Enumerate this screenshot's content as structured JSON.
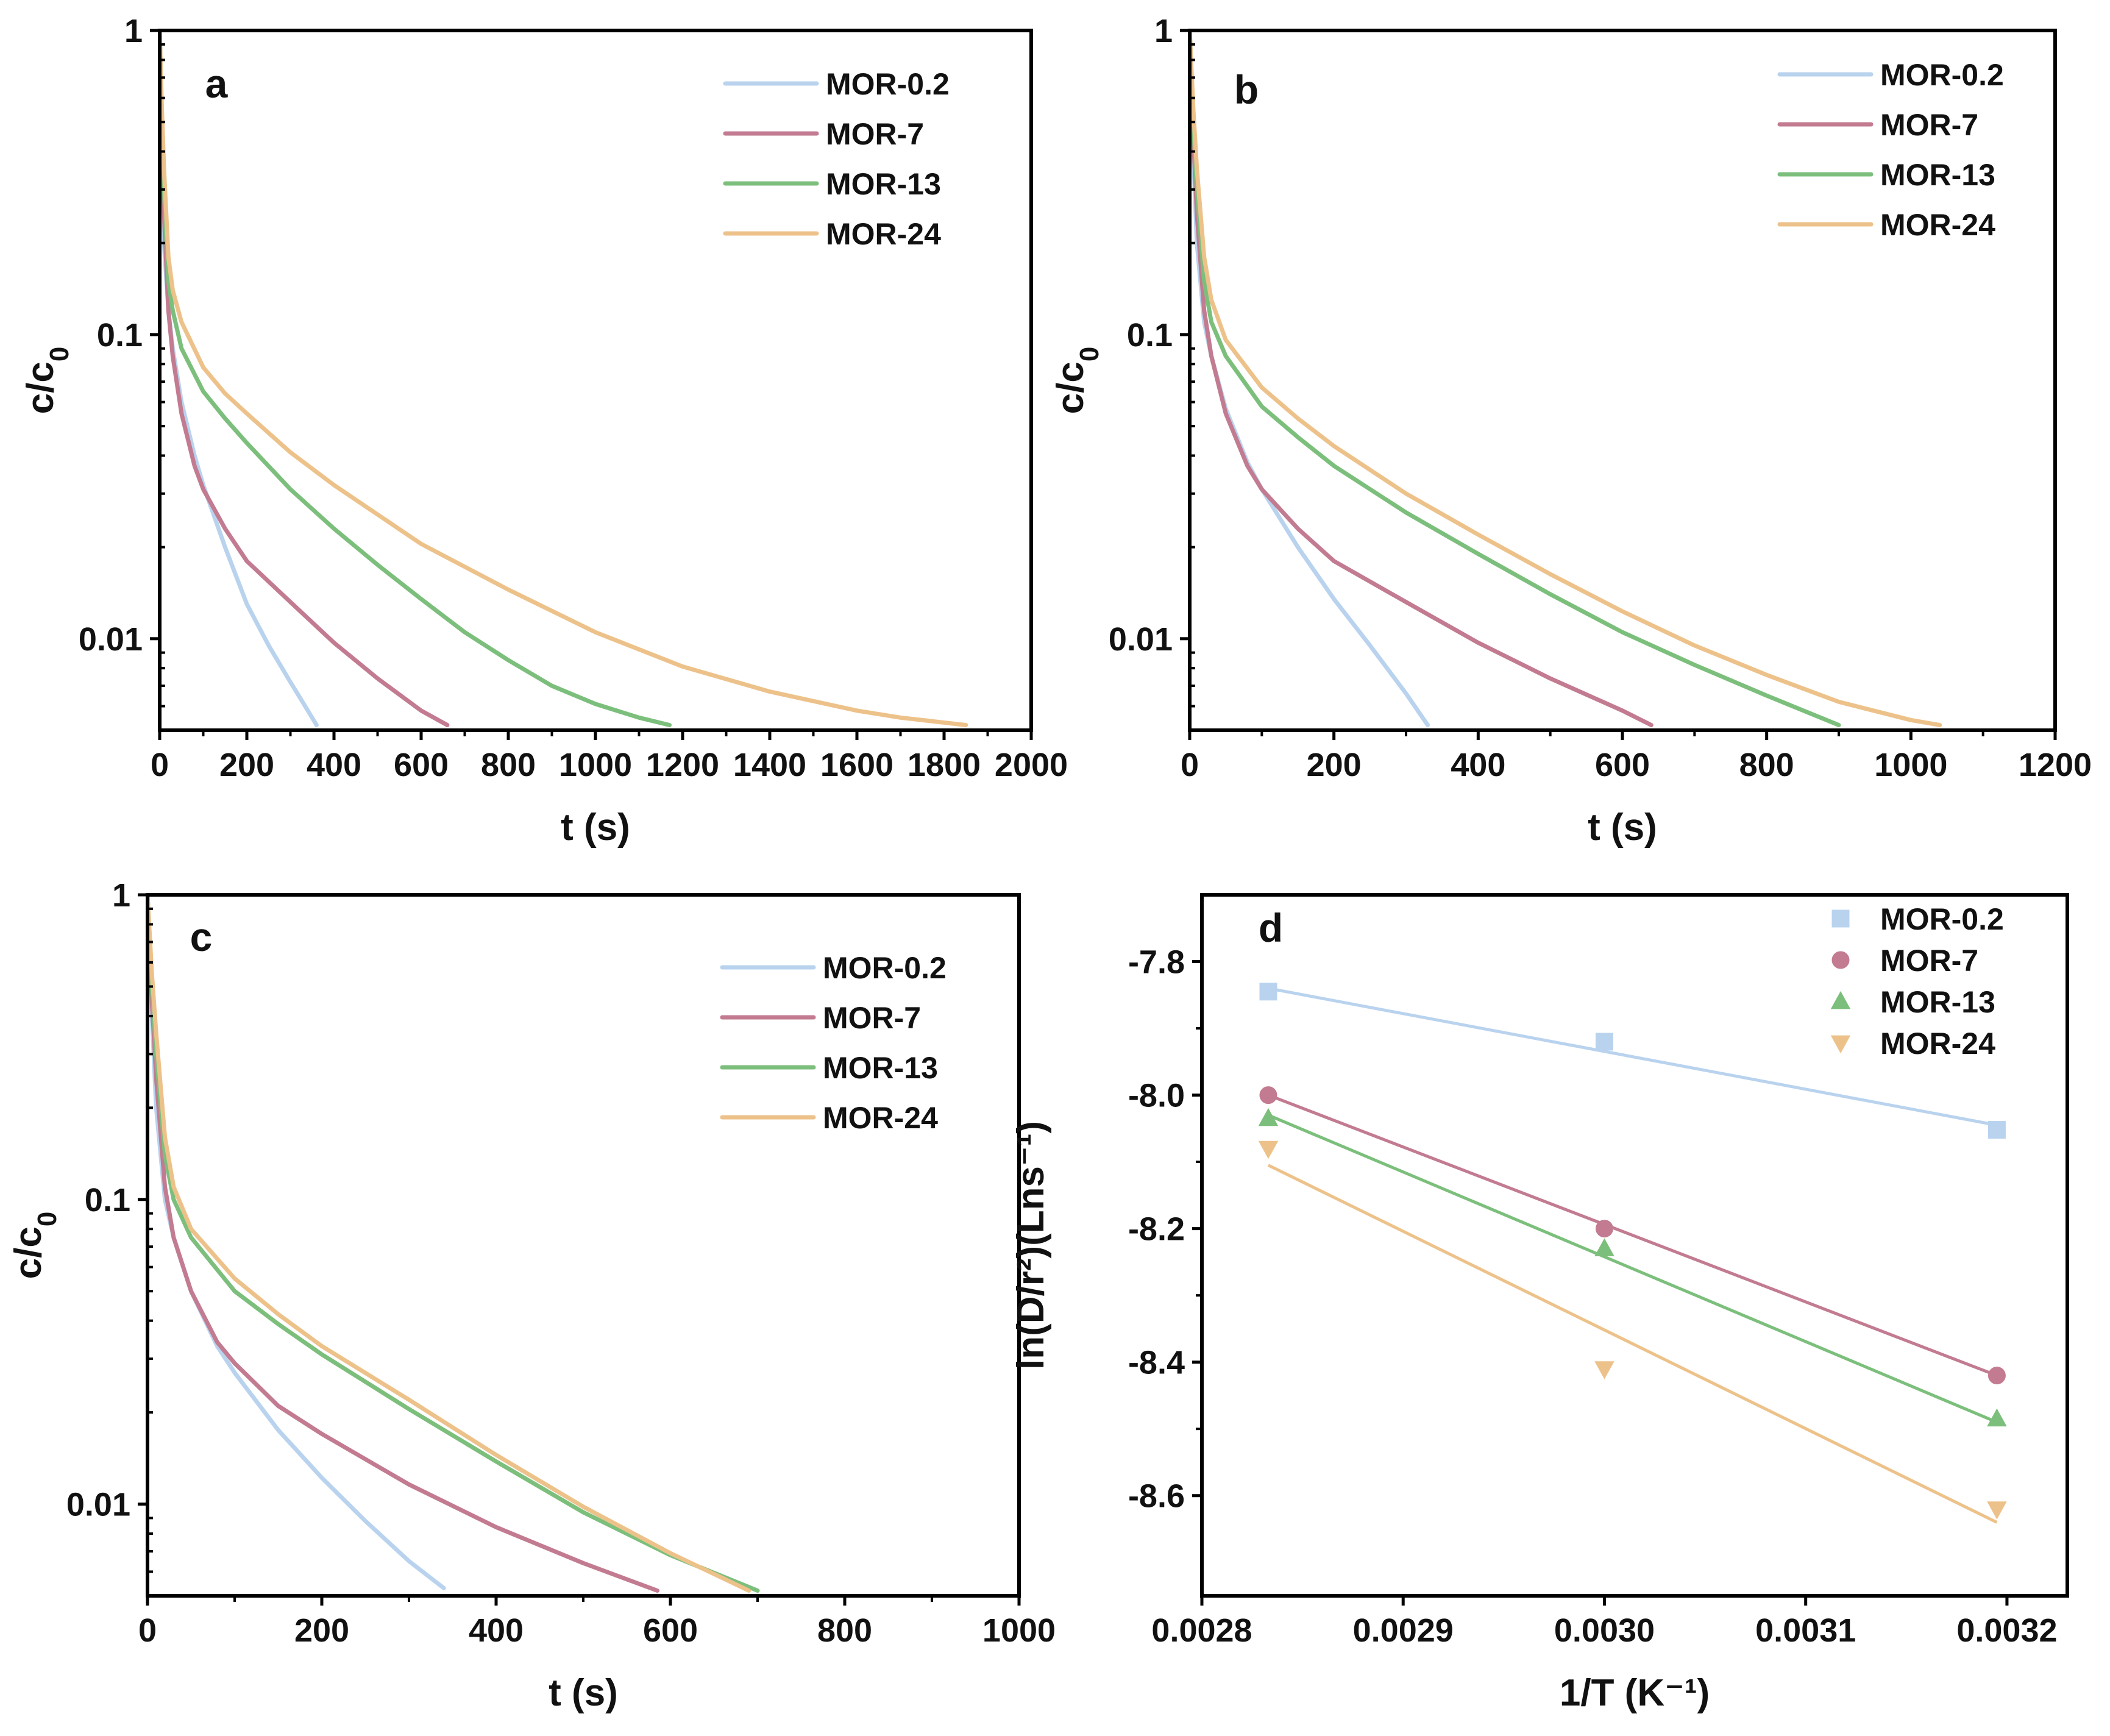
{
  "colors": {
    "MOR-0.2": "#b9d3ee",
    "MOR-7": "#c27b90",
    "MOR-13": "#7cbf7c",
    "MOR-24": "#edc28a"
  },
  "chart_data": [
    {
      "type": "line",
      "panel": "a",
      "xlabel": "t (s)",
      "ylabel": "c/c0",
      "yscale": "log",
      "xlim": [
        0,
        2000
      ],
      "ylim": [
        0.005,
        1
      ],
      "xticks": [
        0,
        200,
        400,
        600,
        800,
        1000,
        1200,
        1400,
        1600,
        1800,
        2000
      ],
      "yticks": [
        {
          "value": 1,
          "label": "1"
        },
        {
          "value": 0.1,
          "label": "0.1"
        },
        {
          "value": 0.01,
          "label": "0.01"
        }
      ],
      "legend": "top-right",
      "series": [
        {
          "name": "MOR-0.2",
          "x": [
            0,
            5,
            10,
            20,
            30,
            50,
            80,
            100,
            150,
            200,
            250,
            300,
            340,
            360
          ],
          "y": [
            1.0,
            0.4,
            0.2,
            0.12,
            0.09,
            0.06,
            0.04,
            0.032,
            0.02,
            0.013,
            0.0095,
            0.0072,
            0.0058,
            0.0052
          ]
        },
        {
          "name": "MOR-7",
          "x": [
            0,
            5,
            10,
            20,
            30,
            50,
            80,
            100,
            150,
            200,
            300,
            400,
            500,
            600,
            660
          ],
          "y": [
            1.0,
            0.45,
            0.25,
            0.12,
            0.085,
            0.055,
            0.037,
            0.031,
            0.023,
            0.018,
            0.0132,
            0.0097,
            0.0074,
            0.0058,
            0.0052
          ]
        },
        {
          "name": "MOR-13",
          "x": [
            0,
            5,
            10,
            20,
            30,
            50,
            100,
            150,
            200,
            300,
            400,
            500,
            600,
            700,
            800,
            900,
            1000,
            1100,
            1170
          ],
          "y": [
            1.0,
            0.5,
            0.3,
            0.15,
            0.12,
            0.09,
            0.065,
            0.053,
            0.044,
            0.031,
            0.023,
            0.0175,
            0.0135,
            0.0105,
            0.0085,
            0.007,
            0.0061,
            0.0055,
            0.0052
          ]
        },
        {
          "name": "MOR-24",
          "x": [
            0,
            5,
            10,
            20,
            30,
            50,
            100,
            150,
            200,
            300,
            400,
            600,
            800,
            1000,
            1200,
            1400,
            1600,
            1700,
            1850
          ],
          "y": [
            1.0,
            0.55,
            0.35,
            0.18,
            0.14,
            0.11,
            0.078,
            0.064,
            0.055,
            0.041,
            0.032,
            0.0205,
            0.0145,
            0.0105,
            0.0081,
            0.0067,
            0.0058,
            0.0055,
            0.0052
          ]
        }
      ]
    },
    {
      "type": "line",
      "panel": "b",
      "xlabel": "t (s)",
      "ylabel": "c/c0",
      "yscale": "log",
      "xlim": [
        0,
        1200
      ],
      "ylim": [
        0.005,
        1
      ],
      "xticks": [
        0,
        200,
        400,
        600,
        800,
        1000,
        1200
      ],
      "yticks": [
        {
          "value": 1,
          "label": "1"
        },
        {
          "value": 0.1,
          "label": "0.1"
        },
        {
          "value": 0.01,
          "label": "0.01"
        }
      ],
      "legend": "top-right",
      "series": [
        {
          "name": "MOR-0.2",
          "x": [
            0,
            5,
            10,
            20,
            30,
            50,
            80,
            100,
            150,
            200,
            250,
            300,
            330
          ],
          "y": [
            1.0,
            0.4,
            0.2,
            0.11,
            0.085,
            0.057,
            0.038,
            0.031,
            0.02,
            0.0135,
            0.0095,
            0.0066,
            0.0052
          ]
        },
        {
          "name": "MOR-7",
          "x": [
            0,
            5,
            10,
            20,
            30,
            50,
            80,
            100,
            150,
            200,
            300,
            400,
            500,
            600,
            640
          ],
          "y": [
            1.0,
            0.45,
            0.25,
            0.12,
            0.085,
            0.055,
            0.037,
            0.031,
            0.023,
            0.018,
            0.0132,
            0.0097,
            0.0074,
            0.0058,
            0.0052
          ]
        },
        {
          "name": "MOR-13",
          "x": [
            0,
            5,
            10,
            20,
            30,
            50,
            100,
            150,
            200,
            300,
            400,
            500,
            600,
            700,
            800,
            900
          ],
          "y": [
            1.0,
            0.5,
            0.3,
            0.15,
            0.11,
            0.085,
            0.058,
            0.046,
            0.037,
            0.026,
            0.019,
            0.014,
            0.0105,
            0.0082,
            0.0065,
            0.0052
          ]
        },
        {
          "name": "MOR-24",
          "x": [
            0,
            5,
            10,
            20,
            30,
            50,
            100,
            150,
            200,
            300,
            400,
            500,
            600,
            700,
            800,
            900,
            1000,
            1040
          ],
          "y": [
            1.0,
            0.55,
            0.35,
            0.18,
            0.13,
            0.096,
            0.067,
            0.053,
            0.043,
            0.03,
            0.022,
            0.0163,
            0.0123,
            0.0095,
            0.0076,
            0.0062,
            0.0054,
            0.0052
          ]
        }
      ]
    },
    {
      "type": "line",
      "panel": "c",
      "xlabel": "t (s)",
      "ylabel": "c/c0",
      "yscale": "log",
      "xlim": [
        0,
        1000
      ],
      "ylim": [
        0.005,
        1
      ],
      "xticks": [
        0,
        200,
        400,
        600,
        800,
        1000
      ],
      "yticks": [
        {
          "value": 1,
          "label": "1"
        },
        {
          "value": 0.1,
          "label": "0.1"
        },
        {
          "value": 0.01,
          "label": "0.01"
        }
      ],
      "legend": "top-right",
      "series": [
        {
          "name": "MOR-0.2",
          "x": [
            0,
            5,
            10,
            20,
            30,
            50,
            80,
            100,
            150,
            200,
            250,
            300,
            340
          ],
          "y": [
            1.0,
            0.4,
            0.2,
            0.1,
            0.075,
            0.05,
            0.033,
            0.027,
            0.0175,
            0.0122,
            0.0088,
            0.0065,
            0.0053
          ]
        },
        {
          "name": "MOR-7",
          "x": [
            0,
            5,
            10,
            20,
            30,
            50,
            80,
            100,
            150,
            200,
            300,
            400,
            500,
            585
          ],
          "y": [
            1.0,
            0.45,
            0.25,
            0.11,
            0.075,
            0.05,
            0.034,
            0.029,
            0.021,
            0.017,
            0.0116,
            0.0084,
            0.0064,
            0.0052
          ]
        },
        {
          "name": "MOR-13",
          "x": [
            0,
            5,
            10,
            20,
            30,
            50,
            100,
            150,
            200,
            300,
            400,
            500,
            600,
            700
          ],
          "y": [
            1.0,
            0.5,
            0.3,
            0.14,
            0.1,
            0.075,
            0.05,
            0.039,
            0.031,
            0.0205,
            0.0138,
            0.0094,
            0.0068,
            0.0052
          ]
        },
        {
          "name": "MOR-24",
          "x": [
            0,
            5,
            10,
            20,
            30,
            50,
            100,
            150,
            200,
            300,
            400,
            500,
            600,
            690
          ],
          "y": [
            1.0,
            0.55,
            0.35,
            0.16,
            0.11,
            0.08,
            0.055,
            0.042,
            0.033,
            0.022,
            0.0145,
            0.0098,
            0.0069,
            0.0052
          ]
        }
      ]
    },
    {
      "type": "scatter",
      "panel": "d",
      "xlabel": "1/T (K⁻¹)",
      "ylabel": "ln(D/r²)(Lns⁻¹)",
      "xlim": [
        0.0028,
        0.00323
      ],
      "ylim": [
        -8.75,
        -7.7
      ],
      "xticks": [
        {
          "value": 0.0028,
          "label": "0.0028"
        },
        {
          "value": 0.0029,
          "label": "0.0029"
        },
        {
          "value": 0.003,
          "label": "0.0030"
        },
        {
          "value": 0.0031,
          "label": "0.0031"
        },
        {
          "value": 0.0032,
          "label": "0.0032"
        }
      ],
      "yticks": [
        {
          "value": -7.8,
          "label": "-7.8"
        },
        {
          "value": -8.0,
          "label": "-8.0"
        },
        {
          "value": -8.2,
          "label": "-8.2"
        },
        {
          "value": -8.4,
          "label": "-8.4"
        },
        {
          "value": -8.6,
          "label": "-8.6"
        }
      ],
      "legend": "top-right",
      "series": [
        {
          "name": "MOR-0.2",
          "marker": "square",
          "x": [
            0.002833,
            0.003,
            0.003195
          ],
          "y": [
            -7.845,
            -7.92,
            -8.052
          ],
          "fit": {
            "x": [
              0.002833,
              0.003195
            ],
            "y": [
              -7.84,
              -8.045
            ]
          }
        },
        {
          "name": "MOR-7",
          "marker": "circle",
          "x": [
            0.002833,
            0.003,
            0.003195
          ],
          "y": [
            -8.0,
            -8.2,
            -8.42
          ],
          "fit": {
            "x": [
              0.002833,
              0.003195
            ],
            "y": [
              -8.0,
              -8.42
            ]
          }
        },
        {
          "name": "MOR-13",
          "marker": "triangle-up",
          "x": [
            0.002833,
            0.003,
            0.003195
          ],
          "y": [
            -8.035,
            -8.23,
            -8.485
          ],
          "fit": {
            "x": [
              0.002833,
              0.003195
            ],
            "y": [
              -8.03,
              -8.49
            ]
          }
        },
        {
          "name": "MOR-24",
          "marker": "triangle-down",
          "x": [
            0.002833,
            0.003,
            0.003195
          ],
          "y": [
            -8.08,
            -8.41,
            -8.62
          ],
          "fit": {
            "x": [
              0.002833,
              0.003195
            ],
            "y": [
              -8.105,
              -8.64
            ]
          }
        }
      ]
    }
  ]
}
